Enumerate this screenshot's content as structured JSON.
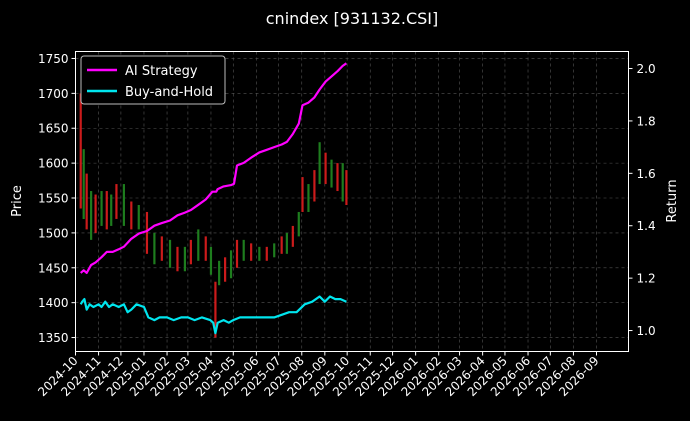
{
  "chart_data": {
    "type": "line",
    "title": "cnindex [931132.CSI]",
    "xlabel": "",
    "ylabel": "Price",
    "ylabel_right": "Return",
    "x_ticks": [
      "2024-10",
      "2024-11",
      "2024-12",
      "2025-01",
      "2025-02",
      "2025-03",
      "2025-04",
      "2025-05",
      "2025-06",
      "2025-07",
      "2025-08",
      "2025-09",
      "2025-10",
      "2025-11",
      "2025-12",
      "2026-01",
      "2026-02",
      "2026-03",
      "2026-04",
      "2026-05",
      "2026-06",
      "2026-07",
      "2026-08",
      "2026-09"
    ],
    "y_left_ticks": [
      1350,
      1400,
      1450,
      1500,
      1550,
      1600,
      1650,
      1700,
      1750
    ],
    "y_right_ticks": [
      1.0,
      1.2,
      1.4,
      1.6,
      1.8,
      2.0
    ],
    "ylim_left": [
      1330,
      1760
    ],
    "ylim_right": [
      0.92,
      2.065
    ],
    "xlim": [
      "2024-10-01",
      "2026-10-14"
    ],
    "grid": true,
    "legend_position": "top-left",
    "colors": {
      "background": "#000000",
      "up": "#cc1b1b",
      "down": "#1e7d1e",
      "ai": "#ff00ff",
      "bh": "#00e5ee",
      "grid": "#555555"
    },
    "series": [
      {
        "name": "AI Strategy",
        "axis": "right",
        "color": "#ff00ff",
        "points": [
          [
            "2024-10-08",
            1.22
          ],
          [
            "2024-10-12",
            1.23
          ],
          [
            "2024-10-16",
            1.22
          ],
          [
            "2024-10-22",
            1.25
          ],
          [
            "2024-10-28",
            1.26
          ],
          [
            "2024-11-05",
            1.28
          ],
          [
            "2024-11-12",
            1.3
          ],
          [
            "2024-11-20",
            1.3
          ],
          [
            "2024-11-28",
            1.31
          ],
          [
            "2024-12-05",
            1.32
          ],
          [
            "2024-12-15",
            1.35
          ],
          [
            "2024-12-25",
            1.37
          ],
          [
            "2025-01-05",
            1.38
          ],
          [
            "2025-01-15",
            1.4
          ],
          [
            "2025-01-25",
            1.41
          ],
          [
            "2025-02-05",
            1.42
          ],
          [
            "2025-02-15",
            1.44
          ],
          [
            "2025-02-25",
            1.45
          ],
          [
            "2025-03-05",
            1.46
          ],
          [
            "2025-03-15",
            1.48
          ],
          [
            "2025-03-25",
            1.5
          ],
          [
            "2025-04-03",
            1.53
          ],
          [
            "2025-04-08",
            1.53
          ],
          [
            "2025-04-10",
            1.54
          ],
          [
            "2025-04-18",
            1.55
          ],
          [
            "2025-04-28",
            1.555
          ],
          [
            "2025-05-02",
            1.56
          ],
          [
            "2025-05-06",
            1.63
          ],
          [
            "2025-05-15",
            1.64
          ],
          [
            "2025-05-25",
            1.66
          ],
          [
            "2025-06-05",
            1.68
          ],
          [
            "2025-06-15",
            1.69
          ],
          [
            "2025-06-25",
            1.7
          ],
          [
            "2025-07-05",
            1.71
          ],
          [
            "2025-07-12",
            1.72
          ],
          [
            "2025-07-20",
            1.75
          ],
          [
            "2025-07-28",
            1.79
          ],
          [
            "2025-08-02",
            1.86
          ],
          [
            "2025-08-10",
            1.87
          ],
          [
            "2025-08-18",
            1.89
          ],
          [
            "2025-08-25",
            1.92
          ],
          [
            "2025-09-02",
            1.95
          ],
          [
            "2025-09-10",
            1.97
          ],
          [
            "2025-09-18",
            1.99
          ],
          [
            "2025-09-25",
            2.01
          ],
          [
            "2025-09-30",
            2.02
          ]
        ]
      },
      {
        "name": "Buy-and-Hold",
        "axis": "right",
        "color": "#00e5ee",
        "points": [
          [
            "2024-10-08",
            1.1
          ],
          [
            "2024-10-10",
            1.11
          ],
          [
            "2024-10-13",
            1.12
          ],
          [
            "2024-10-16",
            1.08
          ],
          [
            "2024-10-20",
            1.1
          ],
          [
            "2024-10-25",
            1.09
          ],
          [
            "2024-11-01",
            1.1
          ],
          [
            "2024-11-05",
            1.09
          ],
          [
            "2024-11-10",
            1.11
          ],
          [
            "2024-11-15",
            1.09
          ],
          [
            "2024-11-20",
            1.1
          ],
          [
            "2024-11-28",
            1.09
          ],
          [
            "2024-12-05",
            1.1
          ],
          [
            "2024-12-10",
            1.07
          ],
          [
            "2024-12-15",
            1.08
          ],
          [
            "2024-12-22",
            1.1
          ],
          [
            "2025-01-01",
            1.09
          ],
          [
            "2025-01-07",
            1.05
          ],
          [
            "2025-01-15",
            1.04
          ],
          [
            "2025-01-22",
            1.05
          ],
          [
            "2025-02-01",
            1.05
          ],
          [
            "2025-02-10",
            1.04
          ],
          [
            "2025-02-20",
            1.05
          ],
          [
            "2025-03-01",
            1.05
          ],
          [
            "2025-03-10",
            1.04
          ],
          [
            "2025-03-20",
            1.05
          ],
          [
            "2025-03-31",
            1.04
          ],
          [
            "2025-04-04",
            1.03
          ],
          [
            "2025-04-07",
            0.99
          ],
          [
            "2025-04-10",
            1.03
          ],
          [
            "2025-04-18",
            1.04
          ],
          [
            "2025-04-25",
            1.03
          ],
          [
            "2025-05-01",
            1.04
          ],
          [
            "2025-05-10",
            1.05
          ],
          [
            "2025-05-20",
            1.05
          ],
          [
            "2025-06-01",
            1.05
          ],
          [
            "2025-06-15",
            1.05
          ],
          [
            "2025-06-25",
            1.05
          ],
          [
            "2025-07-05",
            1.06
          ],
          [
            "2025-07-15",
            1.07
          ],
          [
            "2025-07-25",
            1.07
          ],
          [
            "2025-08-05",
            1.1
          ],
          [
            "2025-08-15",
            1.11
          ],
          [
            "2025-08-25",
            1.13
          ],
          [
            "2025-09-01",
            1.11
          ],
          [
            "2025-09-08",
            1.13
          ],
          [
            "2025-09-15",
            1.12
          ],
          [
            "2025-09-22",
            1.12
          ],
          [
            "2025-09-30",
            1.11
          ]
        ]
      },
      {
        "name": "Price",
        "axis": "left",
        "candles": [
          [
            "2024-10-08",
            1700,
            1535
          ],
          [
            "2024-10-12",
            1620,
            1520
          ],
          [
            "2024-10-16",
            1585,
            1505
          ],
          [
            "2024-10-22",
            1560,
            1490
          ],
          [
            "2024-10-28",
            1555,
            1500
          ],
          [
            "2024-11-05",
            1560,
            1510
          ],
          [
            "2024-11-12",
            1560,
            1505
          ],
          [
            "2024-11-18",
            1555,
            1510
          ],
          [
            "2024-11-25",
            1570,
            1520
          ],
          [
            "2024-12-05",
            1570,
            1510
          ],
          [
            "2024-12-15",
            1545,
            1505
          ],
          [
            "2024-12-25",
            1540,
            1505
          ],
          [
            "2025-01-05",
            1530,
            1470
          ],
          [
            "2025-01-15",
            1500,
            1455
          ],
          [
            "2025-01-25",
            1495,
            1460
          ],
          [
            "2025-02-05",
            1490,
            1450
          ],
          [
            "2025-02-15",
            1480,
            1445
          ],
          [
            "2025-02-25",
            1480,
            1445
          ],
          [
            "2025-03-05",
            1490,
            1455
          ],
          [
            "2025-03-15",
            1505,
            1460
          ],
          [
            "2025-03-25",
            1495,
            1460
          ],
          [
            "2025-04-01",
            1480,
            1440
          ],
          [
            "2025-04-07",
            1430,
            1350
          ],
          [
            "2025-04-12",
            1460,
            1425
          ],
          [
            "2025-04-20",
            1465,
            1430
          ],
          [
            "2025-04-28",
            1475,
            1435
          ],
          [
            "2025-05-06",
            1490,
            1450
          ],
          [
            "2025-05-15",
            1490,
            1460
          ],
          [
            "2025-05-25",
            1485,
            1460
          ],
          [
            "2025-06-05",
            1480,
            1460
          ],
          [
            "2025-06-15",
            1480,
            1460
          ],
          [
            "2025-06-25",
            1485,
            1465
          ],
          [
            "2025-07-05",
            1495,
            1470
          ],
          [
            "2025-07-12",
            1500,
            1470
          ],
          [
            "2025-07-20",
            1510,
            1480
          ],
          [
            "2025-07-28",
            1530,
            1495
          ],
          [
            "2025-08-02",
            1580,
            1530
          ],
          [
            "2025-08-10",
            1570,
            1530
          ],
          [
            "2025-08-18",
            1590,
            1545
          ],
          [
            "2025-08-25",
            1630,
            1570
          ],
          [
            "2025-09-02",
            1615,
            1570
          ],
          [
            "2025-09-10",
            1605,
            1565
          ],
          [
            "2025-09-18",
            1600,
            1560
          ],
          [
            "2025-09-25",
            1600,
            1545
          ],
          [
            "2025-09-30",
            1590,
            1540
          ]
        ]
      }
    ]
  }
}
